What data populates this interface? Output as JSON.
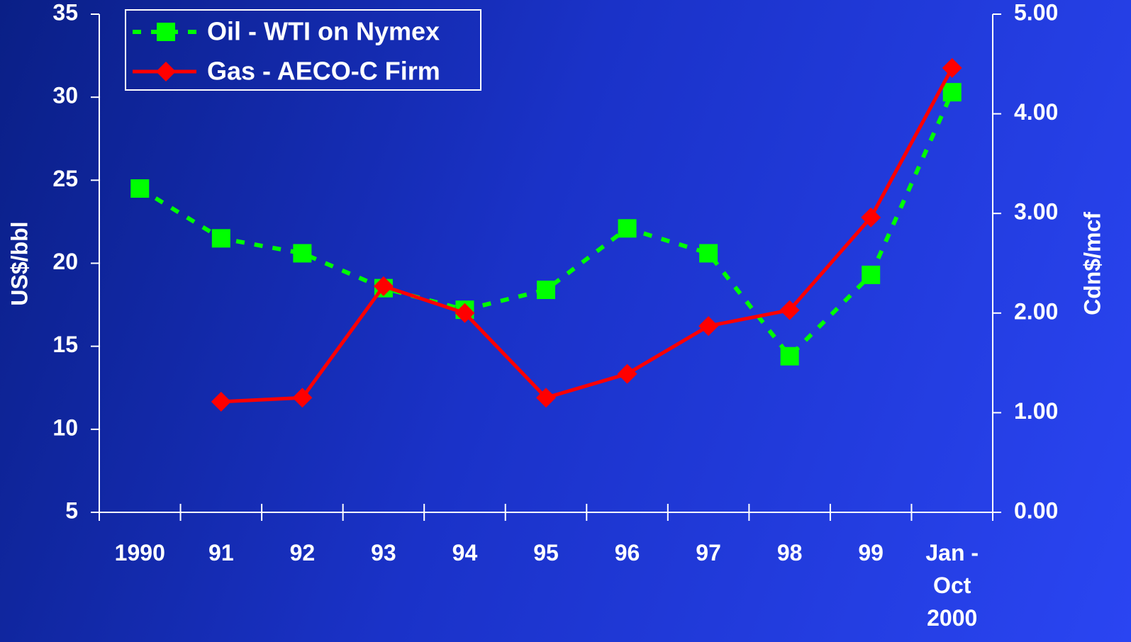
{
  "chart_data": {
    "type": "line",
    "categories": [
      "1990",
      "91",
      "92",
      "93",
      "94",
      "95",
      "96",
      "97",
      "98",
      "99",
      "Jan - Oct 2000"
    ],
    "ylabel": "US$/bbl",
    "y2label": "Cdn$/mcf",
    "ylim": [
      5,
      35
    ],
    "yticks": [
      5,
      10,
      15,
      20,
      25,
      30,
      35
    ],
    "y2lim": [
      0,
      5
    ],
    "y2ticks": [
      {
        "value": 0,
        "label": "0.00"
      },
      {
        "value": 1,
        "label": "1.00"
      },
      {
        "value": 2,
        "label": "2.00"
      },
      {
        "value": 3,
        "label": "3.00"
      },
      {
        "value": 4,
        "label": "4.00"
      },
      {
        "value": 5,
        "label": "5.00"
      }
    ],
    "legend": "top-left",
    "series": [
      {
        "name": "Oil - WTI on Nymex",
        "color": "#00ff00",
        "dashed": true,
        "marker": "square",
        "values": [
          24.5,
          21.5,
          20.6,
          18.5,
          17.2,
          18.4,
          22.1,
          20.6,
          14.4,
          19.3,
          30.3
        ]
      },
      {
        "name": "Gas - AECO-C Firm",
        "color": "#ff0000",
        "dashed": false,
        "marker": "diamond",
        "axis": "y2",
        "values": [
          null,
          1.11,
          1.15,
          2.27,
          2.0,
          1.15,
          1.39,
          1.87,
          2.03,
          2.96,
          4.46
        ]
      }
    ]
  }
}
